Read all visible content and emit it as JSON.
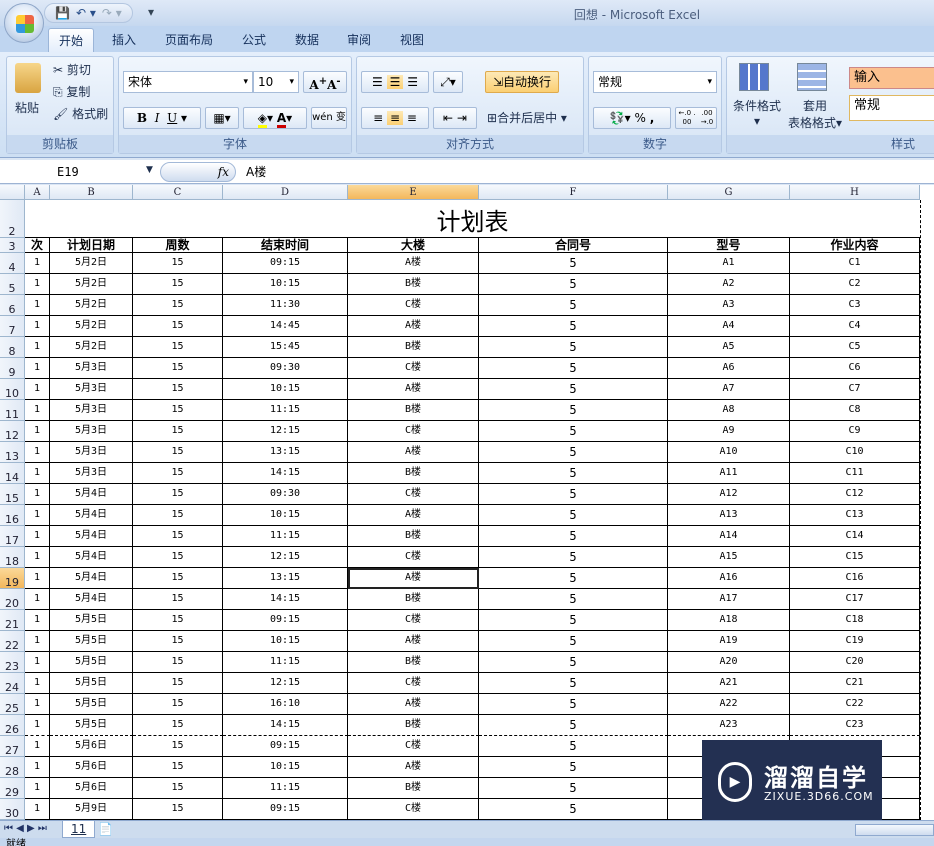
{
  "window": {
    "title": "回想 - Microsoft Excel"
  },
  "quick_access": {
    "save": "save-icon",
    "undo": "undo-icon",
    "redo": "redo-icon"
  },
  "tabs": [
    "开始",
    "插入",
    "页面布局",
    "公式",
    "数据",
    "审阅",
    "视图"
  ],
  "active_tab": "开始",
  "ribbon": {
    "clipboard": {
      "label": "剪贴板",
      "paste": "粘贴",
      "cut": "剪切",
      "copy": "复制",
      "format_painter": "格式刷"
    },
    "font": {
      "label": "字体",
      "font_name": "宋体",
      "font_size": "10",
      "bold": "B",
      "italic": "I",
      "underline": "U",
      "phonetic": "wén 变"
    },
    "alignment": {
      "label": "对齐方式",
      "wrap_text": "自动换行",
      "merge_center": "合并后居中"
    },
    "number": {
      "label": "数字",
      "format": "常规",
      "percent": "%",
      "comma": ",",
      "inc_decimal": "←.0 .00",
      "dec_decimal": ".00 →.0"
    },
    "styles": {
      "label": "样式",
      "conditional": "条件格式",
      "table_format_1": "套用",
      "table_format_2": "表格格式",
      "style_input": "输入",
      "style_normal": "常规"
    }
  },
  "formula_bar": {
    "name_box": "E19",
    "fx": "fx",
    "value": "A楼"
  },
  "columns": [
    "A",
    "B",
    "C",
    "D",
    "E",
    "F",
    "G",
    "H"
  ],
  "selected_column": "E",
  "selected_row": "19",
  "sheet": {
    "title": "计划表",
    "headers": [
      "次",
      "计划日期",
      "周数",
      "结束时间",
      "大楼",
      "合同号",
      "型号",
      "作业内容"
    ],
    "rows": [
      [
        "1",
        "5月2日",
        "15",
        "09:15",
        "A楼",
        "5",
        "A1",
        "C1"
      ],
      [
        "1",
        "5月2日",
        "15",
        "10:15",
        "B楼",
        "5",
        "A2",
        "C2"
      ],
      [
        "1",
        "5月2日",
        "15",
        "11:30",
        "C楼",
        "5",
        "A3",
        "C3"
      ],
      [
        "1",
        "5月2日",
        "15",
        "14:45",
        "A楼",
        "5",
        "A4",
        "C4"
      ],
      [
        "1",
        "5月2日",
        "15",
        "15:45",
        "B楼",
        "5",
        "A5",
        "C5"
      ],
      [
        "1",
        "5月3日",
        "15",
        "09:30",
        "C楼",
        "5",
        "A6",
        "C6"
      ],
      [
        "1",
        "5月3日",
        "15",
        "10:15",
        "A楼",
        "5",
        "A7",
        "C7"
      ],
      [
        "1",
        "5月3日",
        "15",
        "11:15",
        "B楼",
        "5",
        "A8",
        "C8"
      ],
      [
        "1",
        "5月3日",
        "15",
        "12:15",
        "C楼",
        "5",
        "A9",
        "C9"
      ],
      [
        "1",
        "5月3日",
        "15",
        "13:15",
        "A楼",
        "5",
        "A10",
        "C10"
      ],
      [
        "1",
        "5月3日",
        "15",
        "14:15",
        "B楼",
        "5",
        "A11",
        "C11"
      ],
      [
        "1",
        "5月4日",
        "15",
        "09:30",
        "C楼",
        "5",
        "A12",
        "C12"
      ],
      [
        "1",
        "5月4日",
        "15",
        "10:15",
        "A楼",
        "5",
        "A13",
        "C13"
      ],
      [
        "1",
        "5月4日",
        "15",
        "11:15",
        "B楼",
        "5",
        "A14",
        "C14"
      ],
      [
        "1",
        "5月4日",
        "15",
        "12:15",
        "C楼",
        "5",
        "A15",
        "C15"
      ],
      [
        "1",
        "5月4日",
        "15",
        "13:15",
        "A楼",
        "5",
        "A16",
        "C16"
      ],
      [
        "1",
        "5月4日",
        "15",
        "14:15",
        "B楼",
        "5",
        "A17",
        "C17"
      ],
      [
        "1",
        "5月5日",
        "15",
        "09:15",
        "C楼",
        "5",
        "A18",
        "C18"
      ],
      [
        "1",
        "5月5日",
        "15",
        "10:15",
        "A楼",
        "5",
        "A19",
        "C19"
      ],
      [
        "1",
        "5月5日",
        "15",
        "11:15",
        "B楼",
        "5",
        "A20",
        "C20"
      ],
      [
        "1",
        "5月5日",
        "15",
        "12:15",
        "C楼",
        "5",
        "A21",
        "C21"
      ],
      [
        "1",
        "5月5日",
        "15",
        "16:10",
        "A楼",
        "5",
        "A22",
        "C22"
      ],
      [
        "1",
        "5月5日",
        "15",
        "14:15",
        "B楼",
        "5",
        "A23",
        "C23"
      ],
      [
        "1",
        "5月6日",
        "15",
        "09:15",
        "C楼",
        "5",
        "",
        ""
      ],
      [
        "1",
        "5月6日",
        "15",
        "10:15",
        "A楼",
        "5",
        "",
        ""
      ],
      [
        "1",
        "5月6日",
        "15",
        "11:15",
        "B楼",
        "5",
        "",
        ""
      ],
      [
        "1",
        "5月9日",
        "15",
        "09:15",
        "C楼",
        "5",
        "",
        ""
      ]
    ]
  },
  "sheet_tabs": [
    "11"
  ],
  "status": "就绪",
  "watermark": {
    "brand": "溜溜自学",
    "url": "ZIXUE.3D66.COM"
  }
}
